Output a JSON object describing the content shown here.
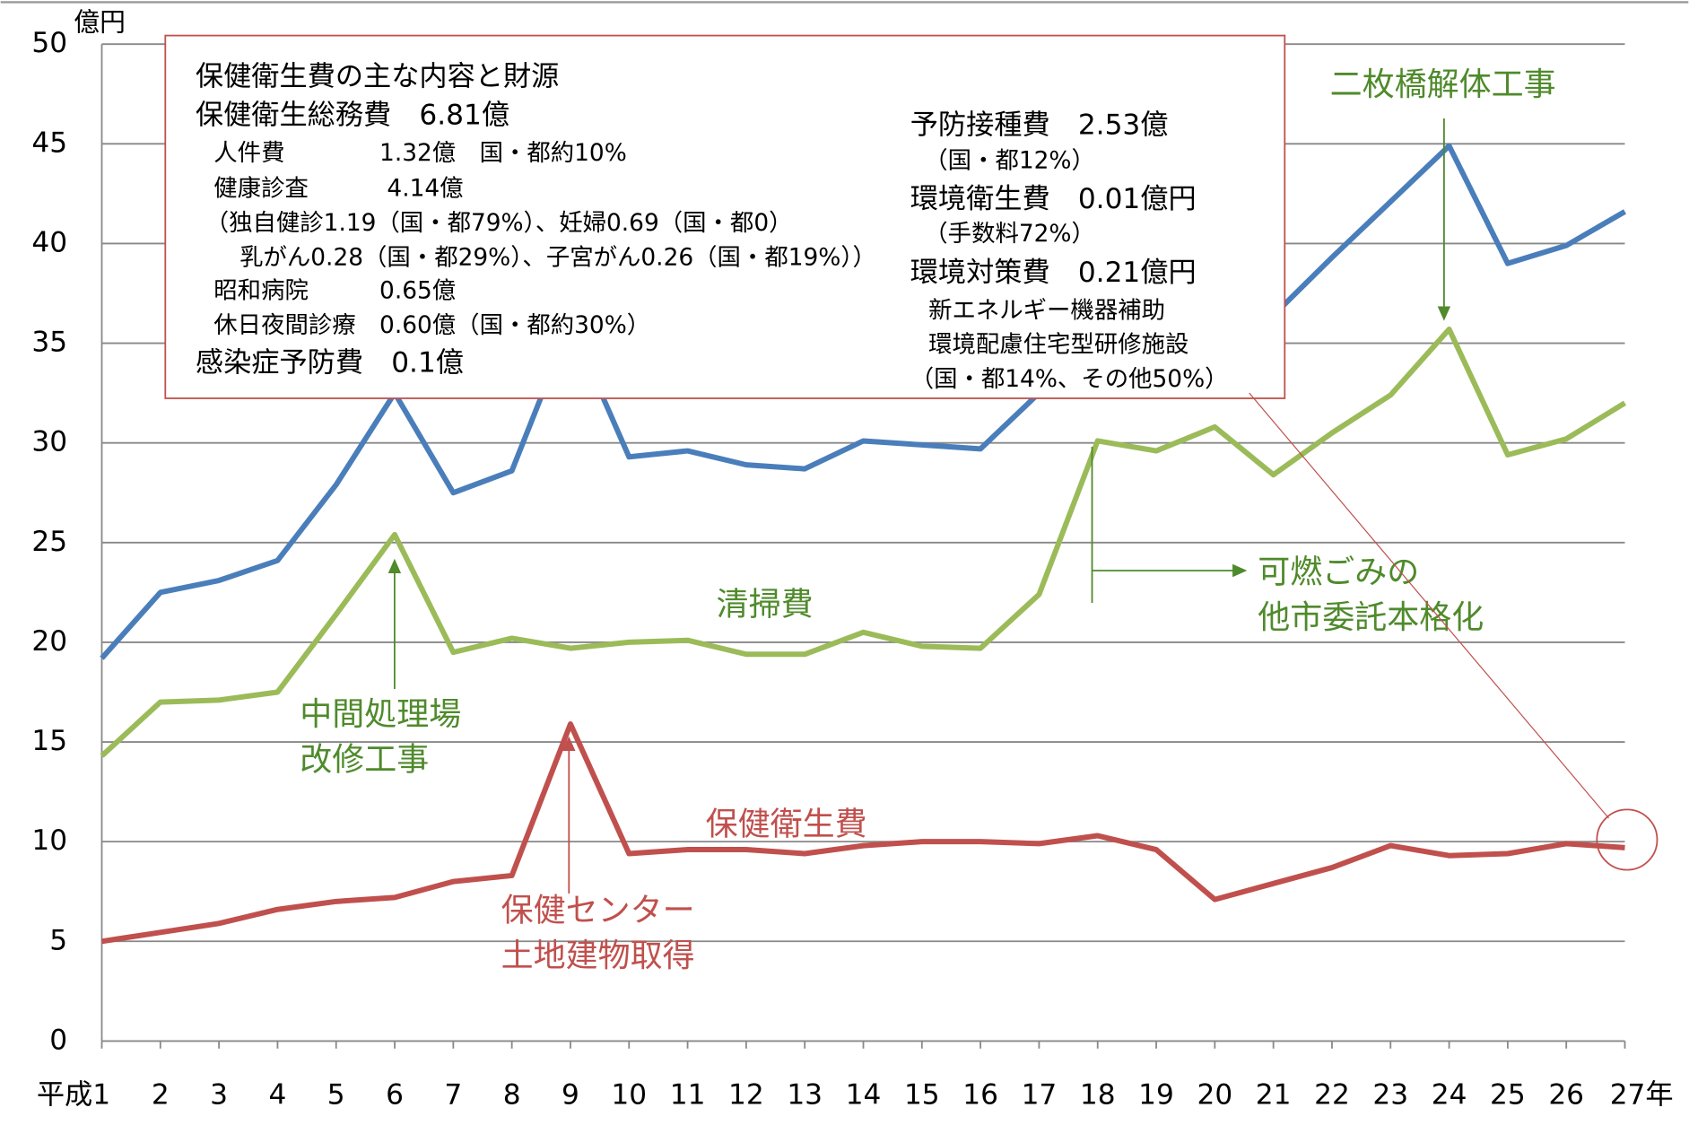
{
  "chart_data": {
    "type": "line",
    "y_unit": "億円",
    "categories": [
      "平成1",
      "2",
      "3",
      "4",
      "5",
      "6",
      "7",
      "8",
      "9",
      "10",
      "11",
      "12",
      "13",
      "14",
      "15",
      "16",
      "17",
      "18",
      "19",
      "20",
      "21",
      "22",
      "23",
      "24",
      "25",
      "26",
      "27年"
    ],
    "series": [
      {
        "color": "#4a7ebb",
        "values": [
          19.2,
          22.5,
          23.1,
          24.1,
          27.9,
          32.5,
          27.5,
          28.6,
          36,
          29.3,
          29.6,
          28.9,
          28.7,
          30.1,
          29.9,
          29.7,
          32.5,
          34,
          35,
          36,
          36.4,
          39.3,
          42.1,
          44.9,
          39.0,
          39.9,
          41.6
        ]
      },
      {
        "name": "清掃費",
        "color": "#9bbb59",
        "values": [
          14.3,
          17.0,
          17.1,
          17.5,
          21.4,
          25.4,
          19.5,
          20.2,
          19.7,
          20.0,
          20.1,
          19.4,
          19.4,
          20.5,
          19.8,
          19.7,
          22.4,
          30.1,
          29.6,
          30.8,
          28.4,
          30.5,
          32.4,
          35.7,
          29.4,
          30.2,
          32.0
        ]
      },
      {
        "name": "保健衛生費",
        "color": "#c0504d",
        "values": [
          5.0,
          5.45,
          5.9,
          6.6,
          7.0,
          7.2,
          8.0,
          8.3,
          15.9,
          9.4,
          9.6,
          9.6,
          9.4,
          9.8,
          10.0,
          10.0,
          9.9,
          10.3,
          9.6,
          7.1,
          7.9,
          8.7,
          9.8,
          9.3,
          9.4,
          9.9,
          9.7
        ]
      }
    ],
    "ylim": [
      0,
      50
    ],
    "yticks": [
      0,
      5,
      10,
      15,
      20,
      25,
      30,
      35,
      40,
      45,
      50
    ],
    "grid": true,
    "box_left": [
      "保健衛生費の主な内容と財源",
      "保健衛生総務費　6.81億",
      "人件費　　　　1.32億　国・都約10%",
      "健康診査　　　 4.14億",
      "（独自健診1.19（国・都79%）、妊婦0.69（国・都0）",
      "　乳がん0.28（国・都29%）、子宮がん0.26（国・都19%））",
      "昭和病院　　　0.65億",
      "休日夜間診療　0.60億（国・都約30%）",
      "感染症予防費　0.1億"
    ],
    "box_right": [
      "予防接種費　2.53億",
      "（国・都12%）",
      "環境衛生費　0.01億円",
      "（手数料72%）",
      "環境対策費　0.21億円",
      "新エネルギー機器補助",
      "環境配慮住宅型研修施設",
      "（国・都14%、その他50%）"
    ],
    "notes_green": [
      "二枚橋解体工事",
      "可燃ごみの",
      "他市委託本格化",
      "中間処理場",
      "改修工事"
    ],
    "notes_red": [
      "保健センター",
      "土地建物取得"
    ]
  }
}
